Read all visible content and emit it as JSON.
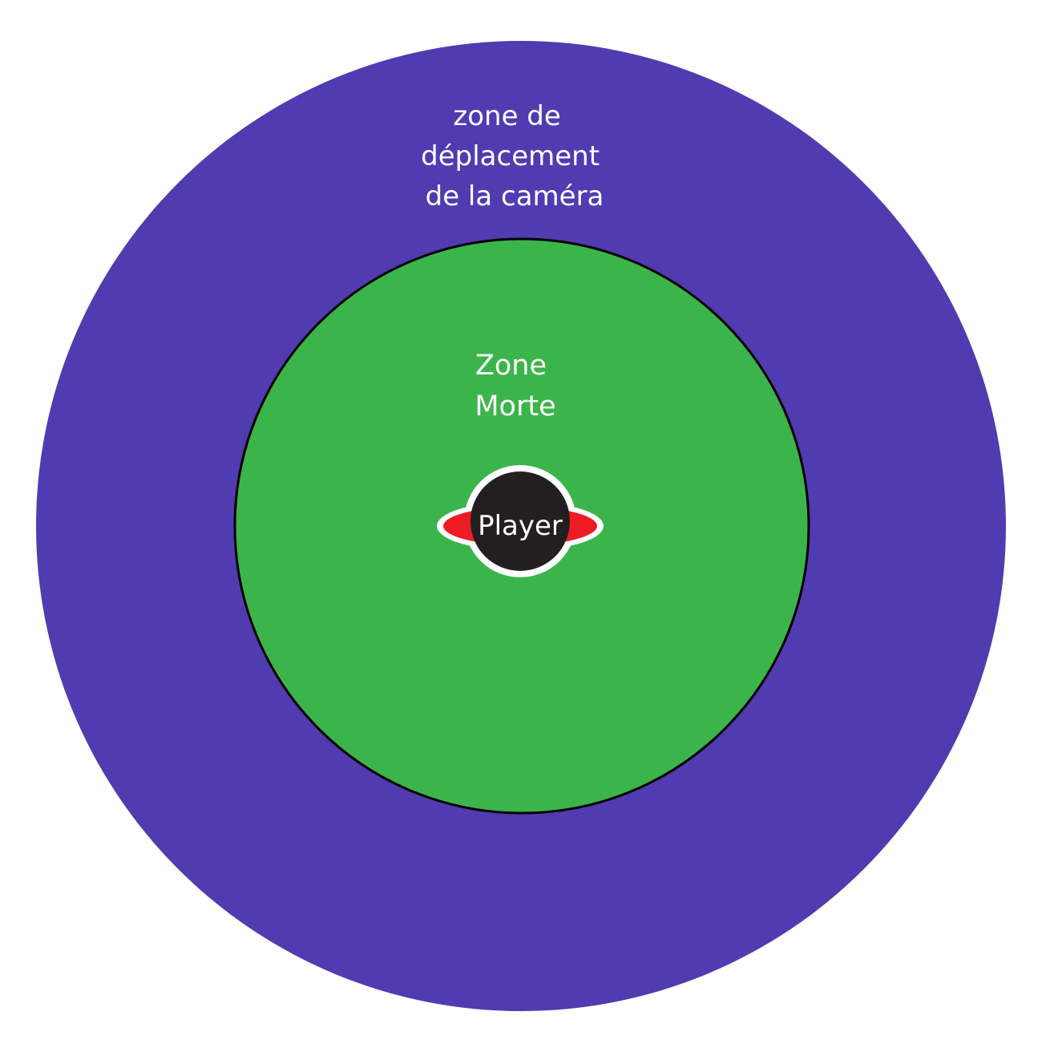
{
  "diagram": {
    "outer_zone": {
      "label_lines": [
        "zone de",
        "déplacement",
        "de la caméra"
      ],
      "fill": "#503BB1"
    },
    "inner_zone": {
      "label_lines": [
        "Zone",
        "Morte"
      ],
      "fill": "#3BB54B",
      "stroke": "#000000"
    },
    "player": {
      "label": "Player",
      "body_fill": "#231F20",
      "ring_fill": "#ED1C24",
      "outline": "#ffffff"
    }
  }
}
